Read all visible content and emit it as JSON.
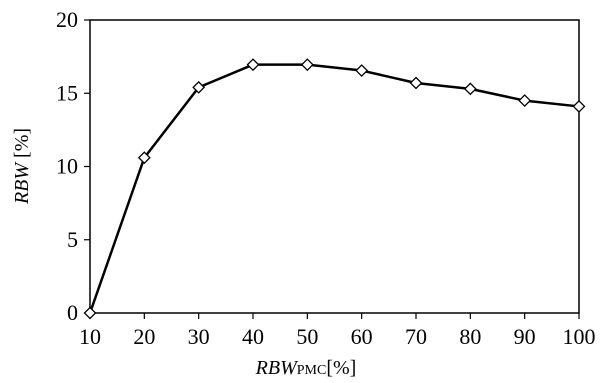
{
  "chart_data": {
    "type": "line",
    "x": [
      10,
      20,
      30,
      40,
      50,
      60,
      70,
      80,
      90,
      100
    ],
    "series": [
      {
        "values": [
          0.0,
          10.6,
          15.4,
          16.95,
          16.95,
          16.55,
          15.7,
          15.3,
          14.5,
          14.1
        ]
      }
    ],
    "xlim": [
      10,
      100
    ],
    "ylim": [
      0,
      20
    ],
    "xticks": [
      10,
      20,
      30,
      40,
      50,
      60,
      70,
      80,
      90,
      100
    ],
    "yticks": [
      0,
      5,
      10,
      15,
      20
    ],
    "xlabel": {
      "main": "RBW",
      "sub": "PMC",
      "unit": "[%]"
    },
    "ylabel": {
      "main": "RBW",
      "unit": " [%]"
    },
    "marker": "diamond",
    "grid": false,
    "colors": {
      "line": "#000000",
      "marker_fill": "#ffffff"
    }
  }
}
